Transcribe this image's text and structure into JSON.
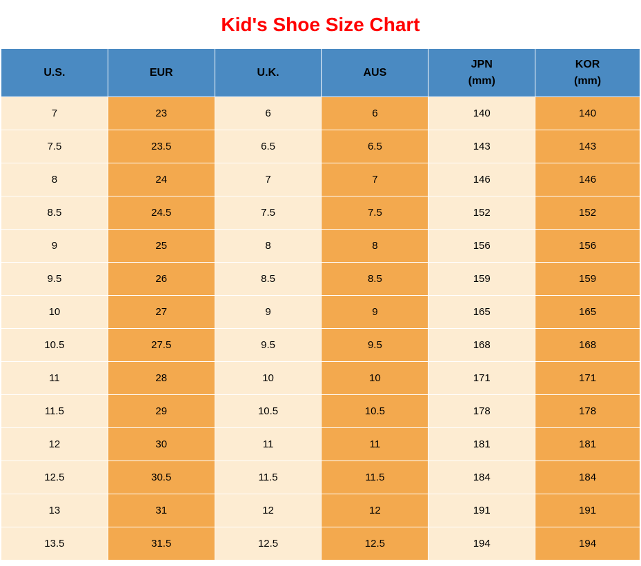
{
  "title": "Kid's Shoe Size Chart",
  "title_color": "#ff0000",
  "table": {
    "type": "table",
    "header_bg": "#4a8ac2",
    "row_colors": {
      "light": "#fdecd2",
      "dark": "#f3a94e"
    },
    "column_widths": [
      "155px",
      "155px",
      "155px",
      "155px",
      "155px",
      "152px"
    ],
    "columns": [
      "U.S.",
      "EUR",
      "U.K.",
      "AUS",
      "JPN\n(mm)",
      "KOR\n(mm)"
    ],
    "rows": [
      [
        "7",
        "23",
        "6",
        "6",
        "140",
        "140"
      ],
      [
        "7.5",
        "23.5",
        "6.5",
        "6.5",
        "143",
        "143"
      ],
      [
        "8",
        "24",
        "7",
        "7",
        "146",
        "146"
      ],
      [
        "8.5",
        "24.5",
        "7.5",
        "7.5",
        "152",
        "152"
      ],
      [
        "9",
        "25",
        "8",
        "8",
        "156",
        "156"
      ],
      [
        "9.5",
        "26",
        "8.5",
        "8.5",
        "159",
        "159"
      ],
      [
        "10",
        "27",
        "9",
        "9",
        "165",
        "165"
      ],
      [
        "10.5",
        "27.5",
        "9.5",
        "9.5",
        "168",
        "168"
      ],
      [
        "11",
        "28",
        "10",
        "10",
        "171",
        "171"
      ],
      [
        "11.5",
        "29",
        "10.5",
        "10.5",
        "178",
        "178"
      ],
      [
        "12",
        "30",
        "11",
        "11",
        "181",
        "181"
      ],
      [
        "12.5",
        "30.5",
        "11.5",
        "11.5",
        "184",
        "184"
      ],
      [
        "13",
        "31",
        "12",
        "12",
        "191",
        "191"
      ],
      [
        "13.5",
        "31.5",
        "12.5",
        "12.5",
        "194",
        "194"
      ]
    ]
  }
}
